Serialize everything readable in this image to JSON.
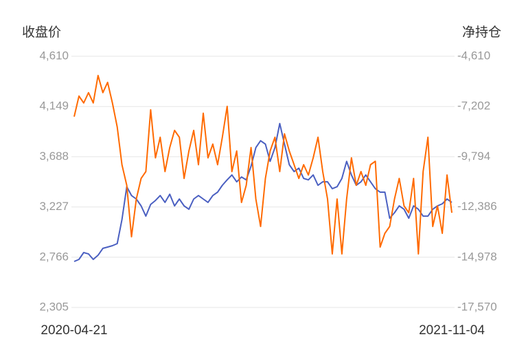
{
  "chart_data": {
    "type": "line",
    "y_label": "收盘价",
    "y2_label": "净持仓",
    "categories": [
      "2020-04-21",
      null,
      null,
      null,
      null,
      null,
      null,
      null,
      null,
      null,
      null,
      null,
      null,
      null,
      null,
      null,
      null,
      null,
      null,
      null,
      null,
      null,
      null,
      null,
      null,
      null,
      null,
      null,
      null,
      null,
      null,
      null,
      null,
      null,
      null,
      null,
      null,
      null,
      null,
      null,
      null,
      null,
      null,
      null,
      null,
      null,
      null,
      null,
      null,
      null,
      null,
      null,
      null,
      null,
      null,
      null,
      null,
      null,
      null,
      null,
      null,
      null,
      null,
      null,
      null,
      null,
      null,
      null,
      null,
      null,
      null,
      null,
      null,
      null,
      null,
      null,
      null,
      null,
      null,
      "2021-11-04"
    ],
    "series": [
      {
        "name": "收盘价",
        "color": "#4a5fc1",
        "values": [
          2727,
          2746,
          2809,
          2796,
          2746,
          2784,
          2847,
          2859,
          2872,
          2891,
          3111,
          3413,
          3332,
          3300,
          3237,
          3143,
          3250,
          3287,
          3332,
          3269,
          3344,
          3237,
          3300,
          3237,
          3206,
          3300,
          3332,
          3300,
          3269,
          3332,
          3363,
          3426,
          3476,
          3521,
          3458,
          3502,
          3476,
          3602,
          3772,
          3835,
          3804,
          3646,
          3772,
          3993,
          3804,
          3615,
          3552,
          3583,
          3489,
          3476,
          3521,
          3426,
          3458,
          3458,
          3395,
          3413,
          3489,
          3646,
          3521,
          3426,
          3458,
          3521,
          3458,
          3395,
          3363,
          3363,
          3124,
          3174,
          3237,
          3206,
          3124,
          3237,
          3206,
          3143,
          3143,
          3206,
          3237,
          3256,
          3300,
          3269
        ]
      },
      {
        "name": "净持仓",
        "color": "#ff6a00",
        "axis": "y2",
        "values": [
          -7726,
          -6664,
          -7018,
          -6487,
          -7018,
          -5601,
          -6487,
          -5956,
          -7018,
          -8257,
          -10205,
          -11267,
          -13923,
          -11975,
          -10913,
          -10559,
          -7372,
          -9851,
          -8788,
          -10559,
          -9320,
          -8434,
          -8788,
          -10913,
          -9497,
          -8434,
          -10205,
          -7549,
          -9851,
          -9142,
          -10205,
          -8788,
          -7195,
          -10559,
          -9497,
          -12152,
          -11267,
          -9320,
          -11975,
          -13392,
          -10913,
          -9497,
          -8788,
          -10559,
          -8611,
          -9497,
          -10205,
          -10913,
          -10205,
          -10736,
          -9851,
          -8788,
          -10559,
          -11975,
          -14808,
          -11975,
          -14808,
          -11975,
          -9851,
          -11267,
          -10559,
          -11267,
          -10205,
          -10028,
          -14454,
          -13746,
          -13392,
          -11975,
          -10913,
          -12329,
          -12683,
          -10913,
          -14808,
          -10559,
          -8788,
          -13392,
          -12329,
          -13746,
          -10736,
          -12683
        ]
      }
    ],
    "ylim": [
      2305,
      4610
    ],
    "yticks": [
      {
        "value": 2305,
        "label": "2,305"
      },
      {
        "value": 2766,
        "label": "2,766"
      },
      {
        "value": 3227,
        "label": "3,227"
      },
      {
        "value": 3688,
        "label": "3,688"
      },
      {
        "value": 4149,
        "label": "4,149"
      },
      {
        "value": 4610,
        "label": "4,610"
      }
    ],
    "y2lim": [
      -17570,
      -4610
    ],
    "y2ticks": [
      {
        "value": -17570,
        "label": "-17,570"
      },
      {
        "value": -14978,
        "label": "-14,978"
      },
      {
        "value": -12386,
        "label": "-12,386"
      },
      {
        "value": -9794,
        "label": "-9,794"
      },
      {
        "value": -7202,
        "label": "-7,202"
      },
      {
        "value": -4610,
        "label": "-4,610"
      }
    ],
    "grid": true
  }
}
